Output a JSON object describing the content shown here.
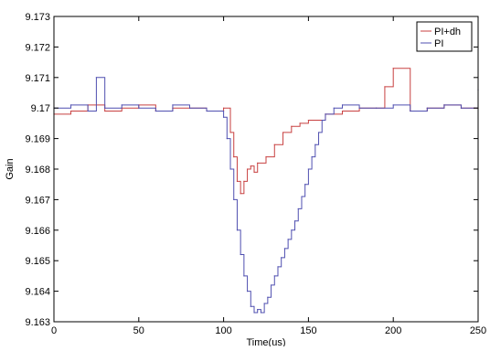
{
  "chart_data": {
    "type": "line",
    "title": "",
    "xlabel": "Time(us)",
    "ylabel": "Gain",
    "xlim": [
      0,
      250
    ],
    "ylim": [
      9.163,
      9.173
    ],
    "xticks": [
      "0",
      "50",
      "100",
      "150",
      "200",
      "250"
    ],
    "yticks": [
      "9.163",
      "9.164",
      "9.165",
      "9.166",
      "9.167",
      "9.168",
      "9.169",
      "9.17",
      "9.171",
      "9.172",
      "9.173"
    ],
    "grid": false,
    "legend": "top-right",
    "step": true,
    "series": [
      {
        "name": "PI+dh",
        "color": "#c84040",
        "x": [
          0,
          10,
          20,
          30,
          40,
          50,
          60,
          70,
          80,
          90,
          100,
          104,
          106,
          108,
          110,
          112,
          114,
          116,
          118,
          120,
          125,
          130,
          135,
          140,
          145,
          150,
          160,
          170,
          180,
          190,
          195,
          200,
          210,
          220,
          230,
          240,
          250
        ],
        "y": [
          9.1698,
          9.1699,
          9.1701,
          9.1699,
          9.17,
          9.1701,
          9.1699,
          9.17,
          9.17,
          9.1699,
          9.17,
          9.1692,
          9.1684,
          9.1676,
          9.1672,
          9.1676,
          9.168,
          9.1681,
          9.1679,
          9.1682,
          9.1684,
          9.1688,
          9.1692,
          9.1694,
          9.1695,
          9.1696,
          9.1698,
          9.1699,
          9.17,
          9.17,
          9.1707,
          9.1713,
          9.1699,
          9.17,
          9.1701,
          9.17,
          9.17
        ]
      },
      {
        "name": "PI",
        "color": "#4f4fb0",
        "x": [
          0,
          10,
          20,
          25,
          30,
          40,
          50,
          60,
          70,
          80,
          90,
          100,
          102,
          104,
          106,
          108,
          110,
          112,
          114,
          116,
          118,
          120,
          122,
          124,
          126,
          128,
          130,
          132,
          134,
          136,
          138,
          140,
          142,
          144,
          146,
          148,
          150,
          152,
          154,
          156,
          158,
          160,
          165,
          170,
          180,
          190,
          200,
          210,
          220,
          230,
          240,
          250
        ],
        "y": [
          9.17,
          9.1701,
          9.1699,
          9.171,
          9.17,
          9.1701,
          9.17,
          9.1699,
          9.1701,
          9.17,
          9.1699,
          9.1697,
          9.169,
          9.168,
          9.167,
          9.166,
          9.1652,
          9.1645,
          9.164,
          9.1635,
          9.1633,
          9.1634,
          9.1633,
          9.1636,
          9.1638,
          9.1642,
          9.1645,
          9.1648,
          9.1651,
          9.1654,
          9.1657,
          9.166,
          9.1663,
          9.1667,
          9.1671,
          9.1675,
          9.168,
          9.1684,
          9.1688,
          9.1692,
          9.1696,
          9.1698,
          9.17,
          9.1701,
          9.17,
          9.17,
          9.1701,
          9.1699,
          9.17,
          9.1701,
          9.17,
          9.1706
        ]
      }
    ]
  }
}
